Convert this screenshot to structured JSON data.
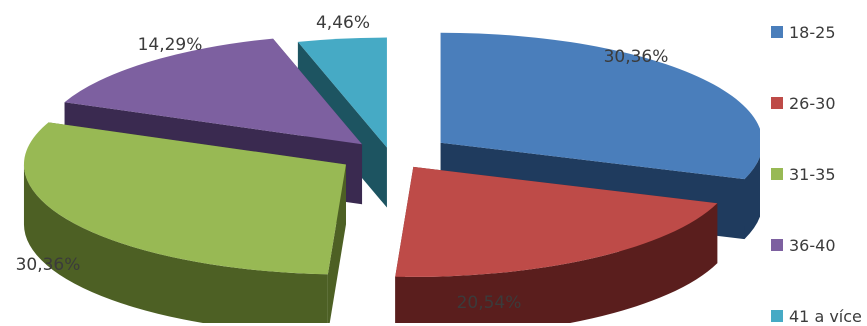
{
  "chart_data": {
    "type": "pie",
    "categories": [
      "18-25",
      "26-30",
      "31-35",
      "36-40",
      "41 a více"
    ],
    "values": [
      30.36,
      20.54,
      30.36,
      14.29,
      4.46
    ],
    "data_labels": [
      "30,36%",
      "20,54%",
      "30,36%",
      "14,29%",
      "4,46%"
    ],
    "colors": [
      "#4a7ebb",
      "#be4b48",
      "#98b954",
      "#7d60a0",
      "#46aac5"
    ],
    "dark_colors": [
      "#1f3b5e",
      "#5a1e1d",
      "#4d6024",
      "#3a2a50",
      "#1d5461"
    ],
    "style": "3d-exploded",
    "legend_position": "right"
  },
  "legend": {
    "items": [
      {
        "label": "18-25",
        "color": "#4a7ebb"
      },
      {
        "label": "26-30",
        "color": "#be4b48"
      },
      {
        "label": "31-35",
        "color": "#98b954"
      },
      {
        "label": "36-40",
        "color": "#7d60a0"
      },
      {
        "label": "41 a více",
        "color": "#46aac5"
      }
    ]
  }
}
